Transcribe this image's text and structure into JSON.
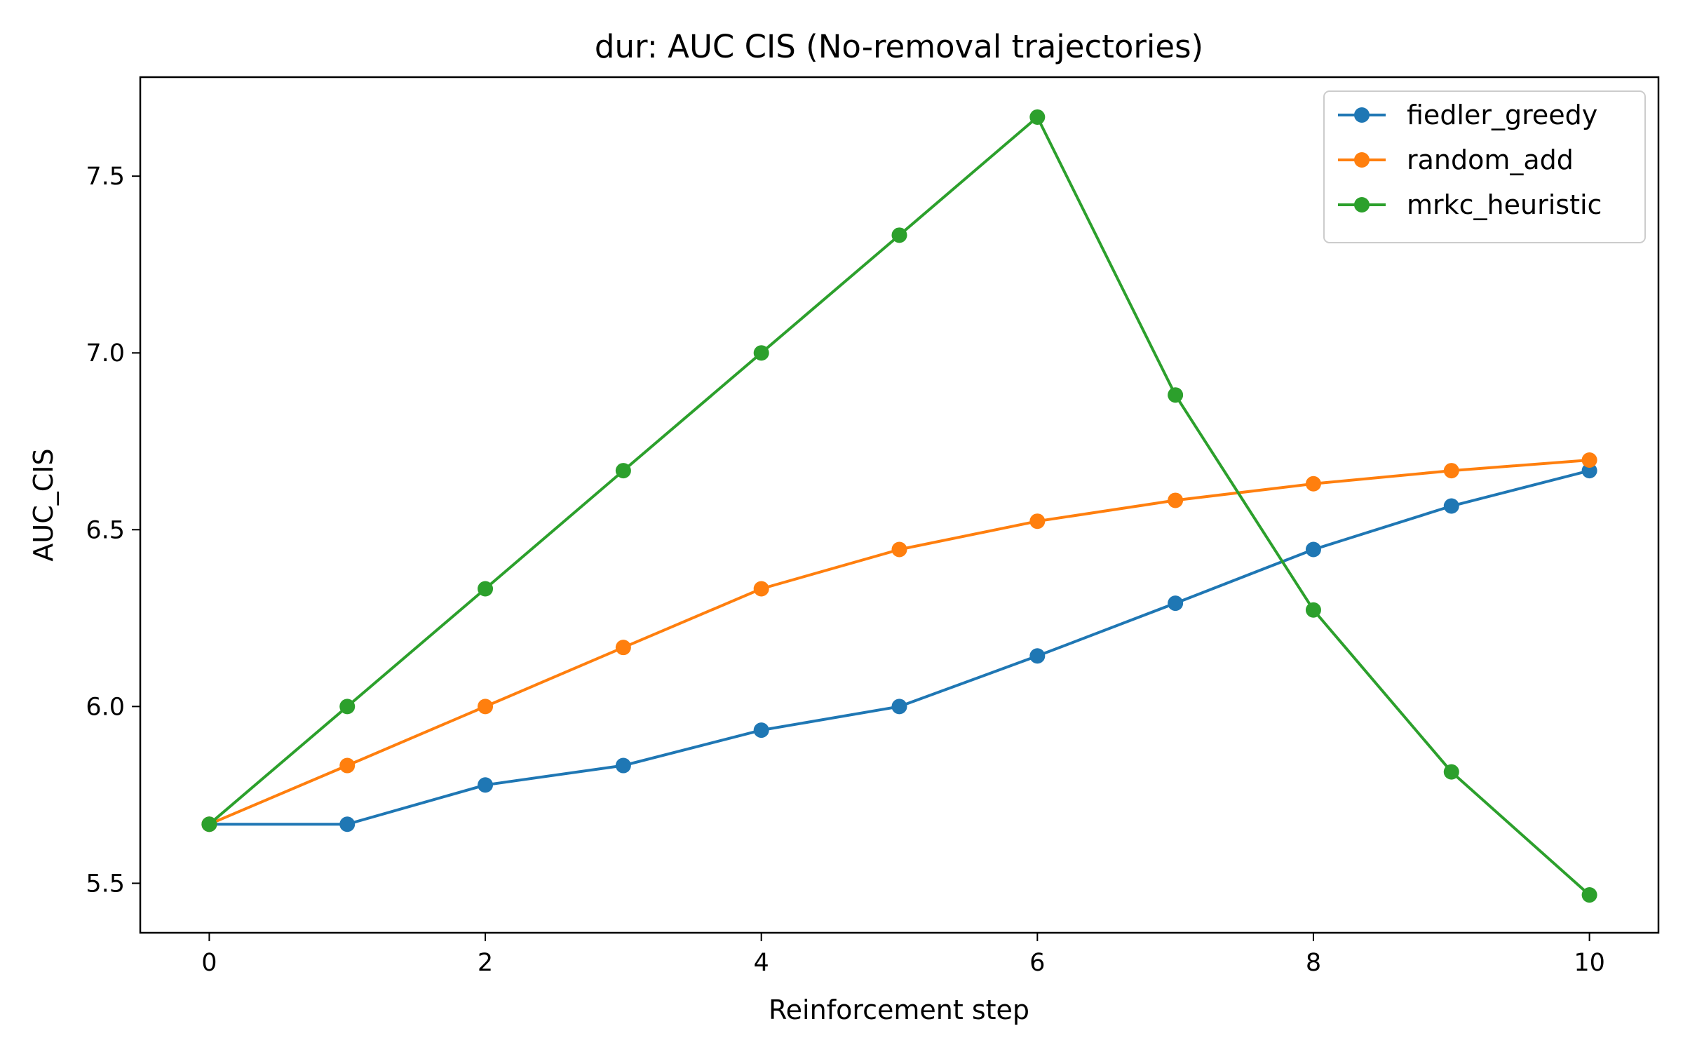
{
  "chart_data": {
    "type": "line",
    "title": "dur: AUC CIS (No-removal trajectories)",
    "xlabel": "Reinforcement step",
    "ylabel": "AUC_CIS",
    "x": [
      0,
      1,
      2,
      3,
      4,
      5,
      6,
      7,
      8,
      9,
      10
    ],
    "xlim": [
      -0.5,
      10.5
    ],
    "ylim": [
      5.36,
      7.78
    ],
    "xticks": [
      "0",
      "2",
      "4",
      "6",
      "8",
      "10"
    ],
    "yticks": [
      "5.5",
      "6.0",
      "6.5",
      "7.0",
      "7.5"
    ],
    "legend_position": "top-right",
    "grid": false,
    "series": [
      {
        "name": "fiedler_greedy",
        "color": "#1f77b4",
        "values": [
          5.667,
          5.667,
          5.778,
          5.833,
          5.933,
          6.0,
          6.143,
          6.292,
          6.444,
          6.567,
          6.667
        ]
      },
      {
        "name": "random_add",
        "color": "#ff7f0e",
        "values": [
          5.667,
          5.833,
          6.0,
          6.167,
          6.333,
          6.444,
          6.524,
          6.583,
          6.63,
          6.667,
          6.697
        ]
      },
      {
        "name": "mrkc_heuristic",
        "color": "#2ca02c",
        "values": [
          5.667,
          6.0,
          6.333,
          6.667,
          7.0,
          7.333,
          7.667,
          6.881,
          6.273,
          5.815,
          5.467
        ]
      }
    ]
  }
}
